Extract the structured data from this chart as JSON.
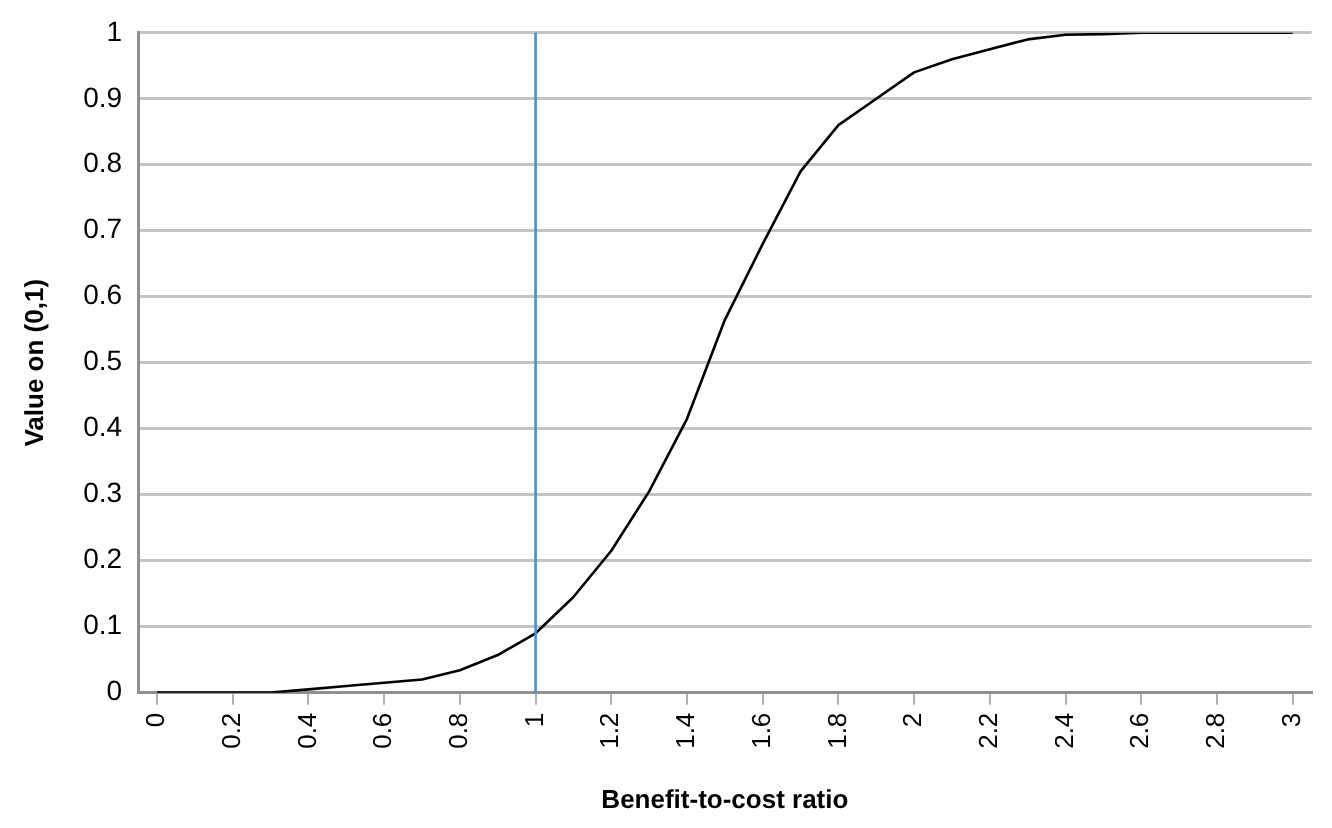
{
  "chart_data": {
    "type": "line",
    "xlabel": "Benefit-to-cost ratio",
    "ylabel": "Value on (0,1)",
    "x": [
      0,
      0.1,
      0.2,
      0.3,
      0.4,
      0.5,
      0.6,
      0.7,
      0.8,
      0.9,
      1,
      1.1,
      1.2,
      1.3,
      1.4,
      1.5,
      1.6,
      1.7,
      1.8,
      1.9,
      2,
      2.1,
      2.2,
      2.3,
      2.4,
      2.5,
      2.6,
      2.7,
      2.8,
      2.9,
      3
    ],
    "series": [
      {
        "color": "#000000",
        "values": [
          0,
          0,
          0,
          0,
          0.005,
          0.01,
          0.015,
          0.02,
          0.034,
          0.057,
          0.09,
          0.145,
          0.215,
          0.305,
          0.415,
          0.565,
          0.68,
          0.79,
          0.86,
          0.9,
          0.94,
          0.96,
          0.975,
          0.99,
          0.997,
          0.998,
          1,
          1,
          1,
          1,
          1
        ]
      }
    ],
    "xlim": [
      -0.05,
      3.05
    ],
    "xticks": [
      0,
      0.2,
      0.4,
      0.6,
      0.8,
      1,
      1.2,
      1.4,
      1.6,
      1.8,
      2,
      2.2,
      2.4,
      2.6,
      2.8,
      3
    ],
    "ylim": [
      0,
      1
    ],
    "yticks": [
      0,
      0.1,
      0.2,
      0.3,
      0.4,
      0.5,
      0.6,
      0.7,
      0.8,
      0.9,
      1
    ],
    "ref_lines": [
      {
        "axis": "x",
        "value": 1,
        "color": "#4a8fd0"
      }
    ],
    "grid": "y",
    "legend": false,
    "marker": "none",
    "line_style": "solid"
  }
}
